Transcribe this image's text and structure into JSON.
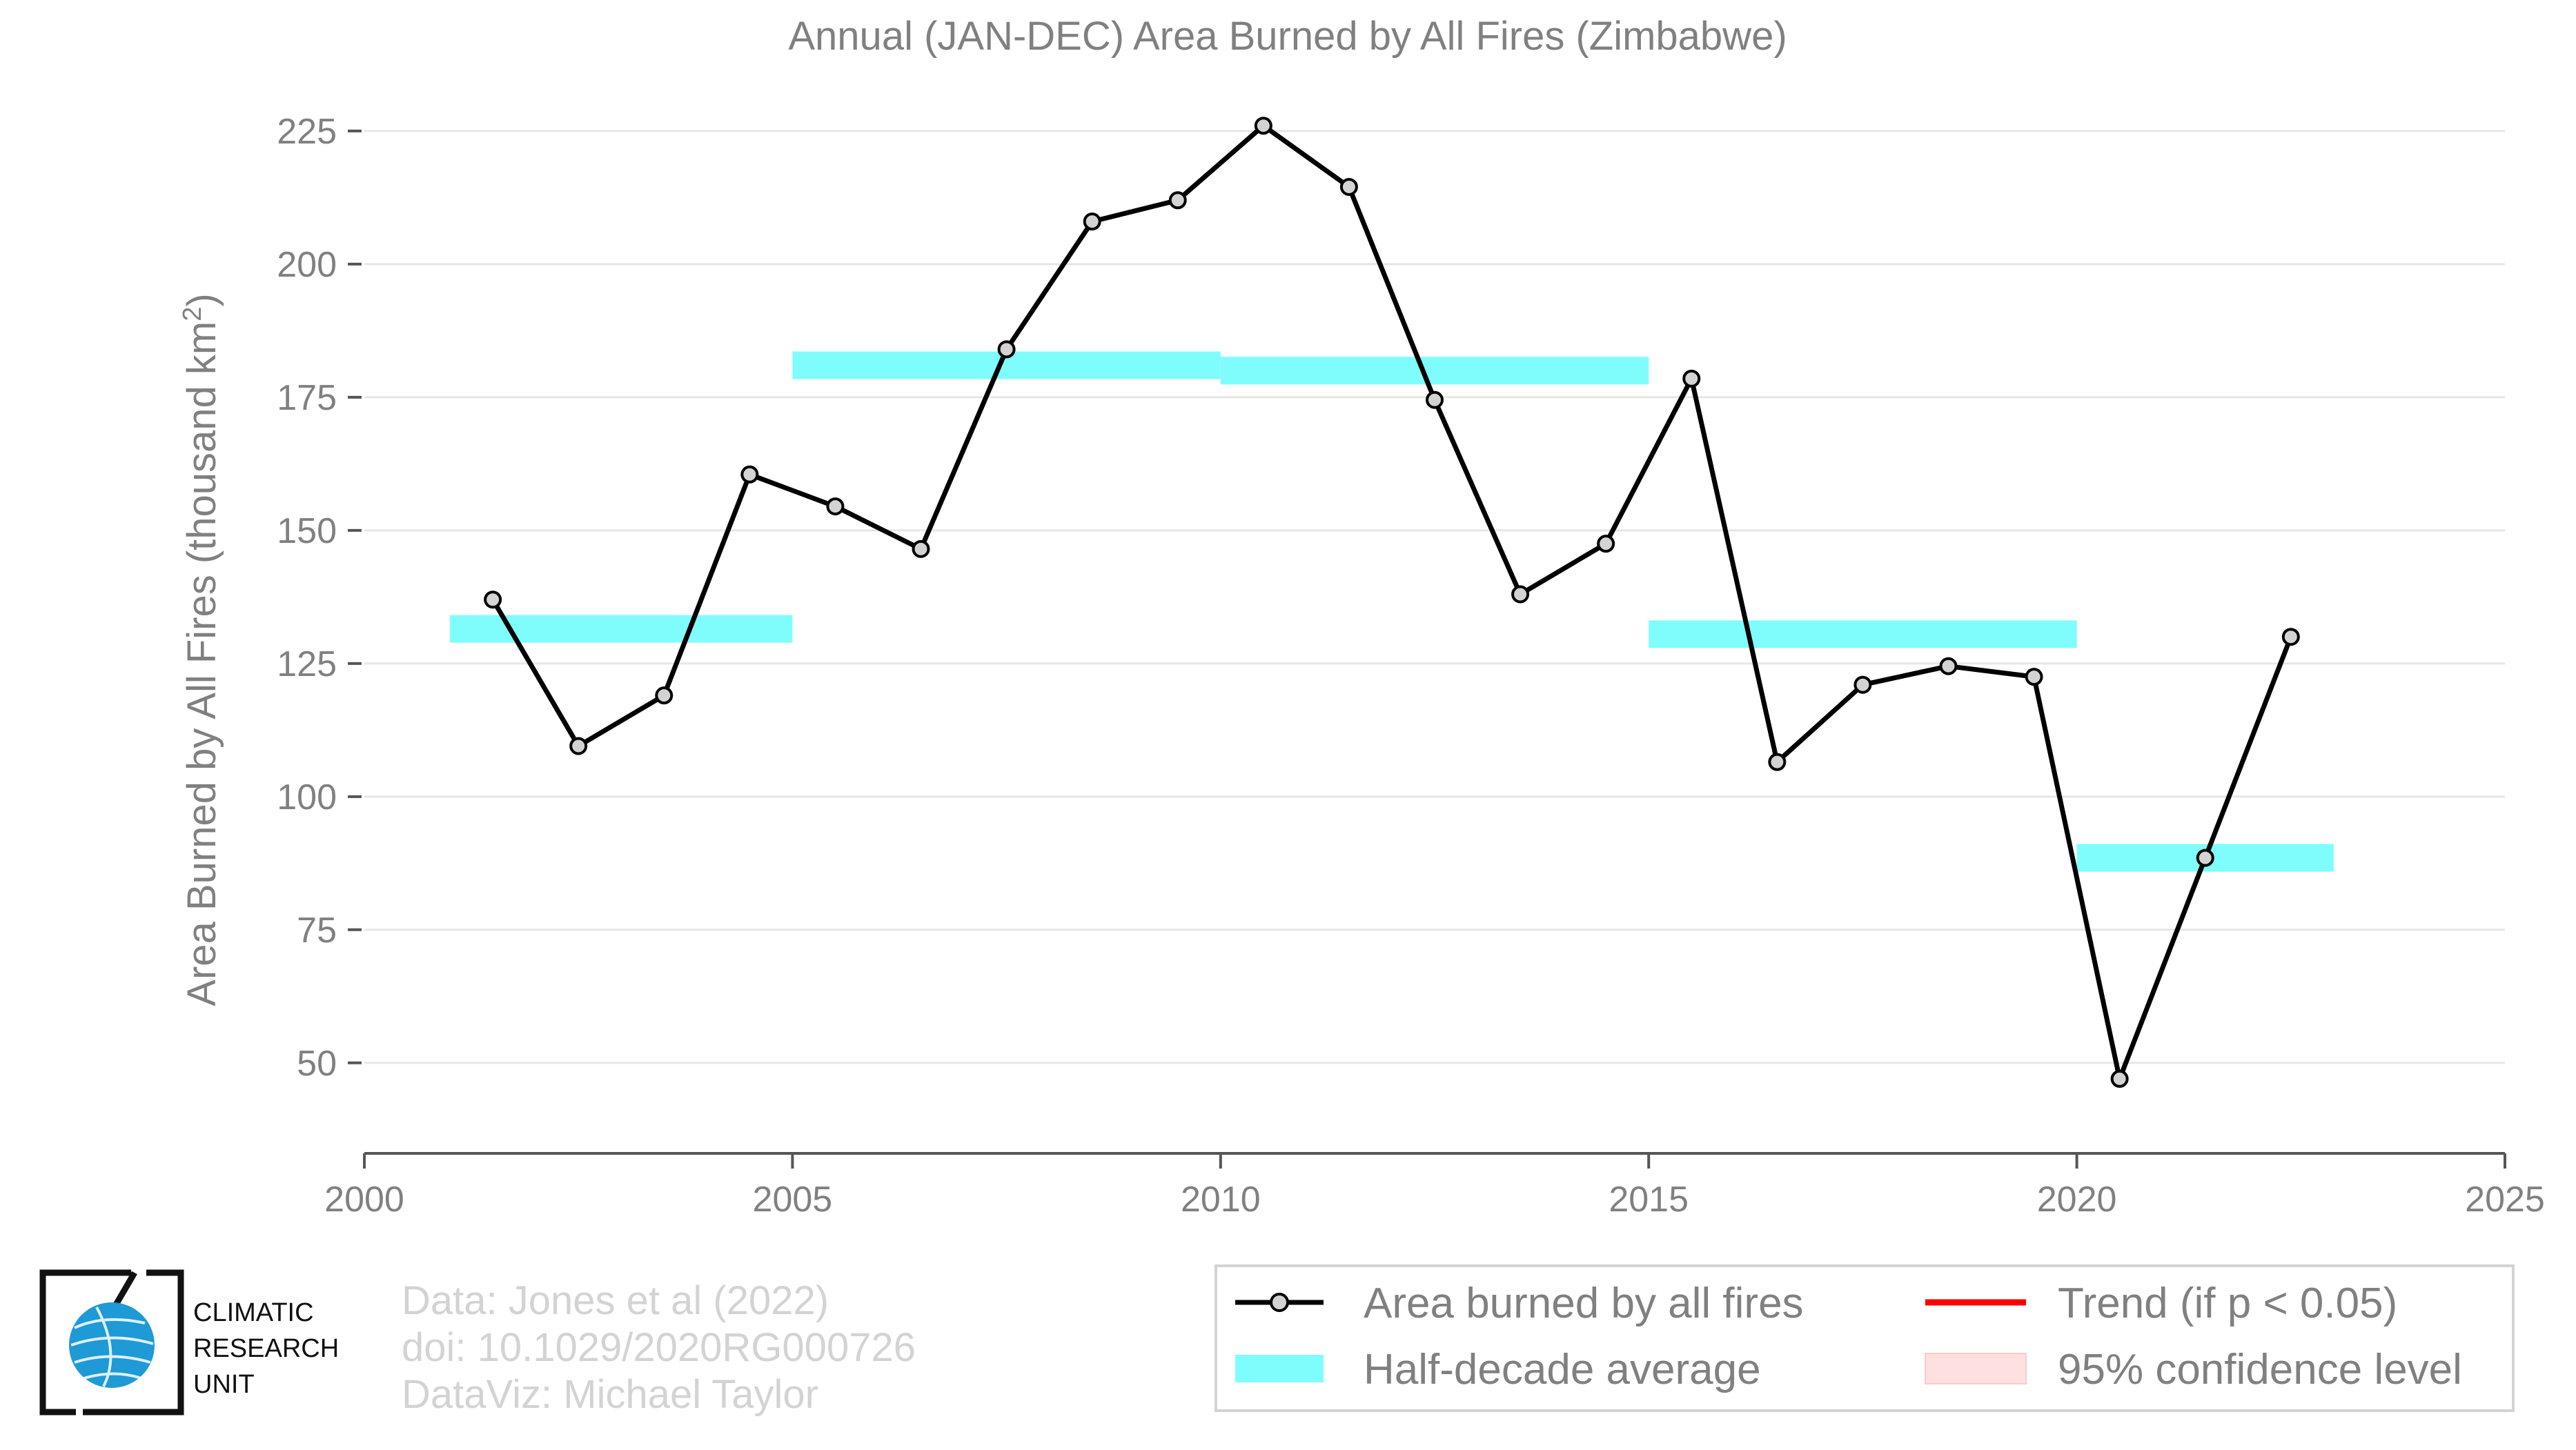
{
  "chart_data": {
    "type": "line",
    "title": "Annual (JAN-DEC) Area Burned by All Fires (Zimbabwe)",
    "ylabel_main": "Area Burned by All Fires (thousand km",
    "ylabel_sup": "2",
    "ylabel_end": ")",
    "xlim": [
      2000,
      2025
    ],
    "ylim": [
      33,
      236
    ],
    "xticks": [
      2000,
      2005,
      2010,
      2015,
      2020,
      2025
    ],
    "yticks": [
      50,
      75,
      100,
      125,
      150,
      175,
      200,
      225
    ],
    "grid": true,
    "series": [
      {
        "name": "Area burned by all fires",
        "color": "#000000",
        "marker_fill": "#d3d3d3",
        "x": [
          2001.5,
          2002.5,
          2003.5,
          2004.5,
          2005.5,
          2006.5,
          2007.5,
          2008.5,
          2009.5,
          2010.5,
          2011.5,
          2012.5,
          2013.5,
          2014.5,
          2015.5,
          2016.5,
          2017.5,
          2018.5,
          2019.5,
          2020.5,
          2021.5,
          2022.5
        ],
        "y": [
          137,
          109.5,
          119,
          160.5,
          154.5,
          146.5,
          184,
          208,
          212,
          226,
          214.5,
          174.5,
          138,
          147.5,
          178.5,
          106.5,
          121,
          124.5,
          122.5,
          47,
          88.5,
          130
        ]
      }
    ],
    "half_decade_average": {
      "name": "Half-decade average",
      "color": "#7ffdfd",
      "segments": [
        {
          "x_start": 2001,
          "x_end": 2005,
          "value": 131.5
        },
        {
          "x_start": 2005,
          "x_end": 2010,
          "value": 181
        },
        {
          "x_start": 2010,
          "x_end": 2015,
          "value": 180
        },
        {
          "x_start": 2015,
          "x_end": 2020,
          "value": 130.5
        },
        {
          "x_start": 2020,
          "x_end": 2023,
          "value": 88.5
        }
      ]
    },
    "legend": {
      "placement": "bottom-right",
      "entries": [
        {
          "label": "Area burned by all fires",
          "kind": "line-marker",
          "color": "#000000"
        },
        {
          "label": "Half-decade average",
          "kind": "band",
          "color": "#7ffdfd"
        },
        {
          "label": "Trend (if p < 0.05)",
          "kind": "line",
          "color": "#ff0000"
        },
        {
          "label": "95% confidence level",
          "kind": "band",
          "color": "#ffe0e0"
        }
      ]
    },
    "credits": [
      "Data: Jones et al (2022)",
      "doi: 10.1029/2020RG000726",
      "DataViz: Michael Taylor"
    ]
  },
  "logo": {
    "lines": [
      "CLIMATIC",
      "RESEARCH",
      "UNIT"
    ],
    "globe_color": "#1e9ad6"
  }
}
